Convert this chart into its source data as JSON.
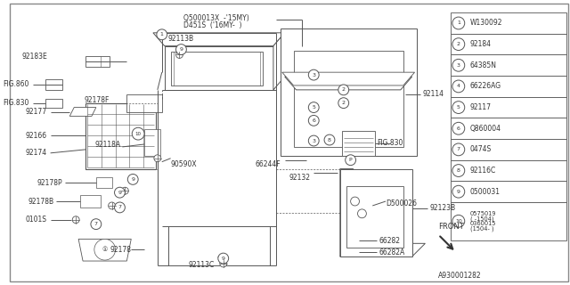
{
  "bg_color": "#ffffff",
  "line_color": "#555555",
  "text_color": "#333333",
  "diagram_code": "A930001282",
  "legend_items": [
    {
      "num": "1",
      "text": "W130092"
    },
    {
      "num": "2",
      "text": "92184"
    },
    {
      "num": "3",
      "text": "64385N"
    },
    {
      "num": "4",
      "text": "66226AG"
    },
    {
      "num": "5",
      "text": "92117"
    },
    {
      "num": "6",
      "text": "Q860004"
    },
    {
      "num": "7",
      "text": "0474S"
    },
    {
      "num": "8",
      "text": "92116C"
    },
    {
      "num": "9",
      "text": "0500031"
    },
    {
      "num": "10",
      "text": "0575019\n( -1504)\n0360015\n(1504- )"
    }
  ]
}
